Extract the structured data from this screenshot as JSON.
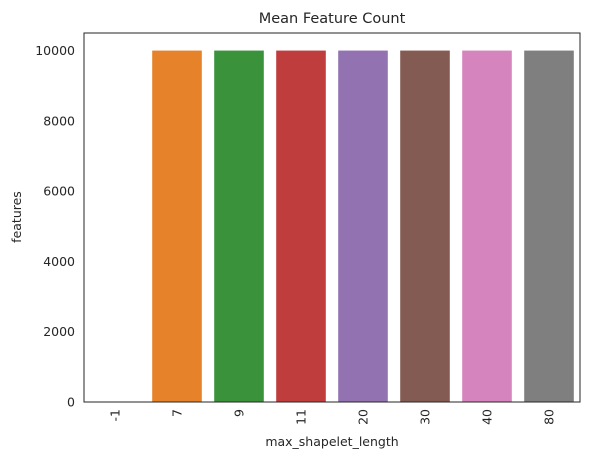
{
  "chart_data": {
    "type": "bar",
    "title": "Mean Feature Count",
    "xlabel": "max_shapelet_length",
    "ylabel": "features",
    "categories": [
      "-1",
      "7",
      "9",
      "11",
      "20",
      "30",
      "40",
      "80"
    ],
    "values": [
      0,
      10000,
      10000,
      10000,
      10000,
      10000,
      10000,
      10000
    ],
    "colors": [
      "#1f77b4",
      "#e6822a",
      "#3a923a",
      "#c03d3e",
      "#9372b2",
      "#845b53",
      "#d684bd",
      "#7f7f7f"
    ],
    "yticks": [
      0,
      2000,
      4000,
      6000,
      8000,
      10000
    ],
    "ylim": [
      0,
      10500
    ],
    "grid": false,
    "legend": "none"
  }
}
